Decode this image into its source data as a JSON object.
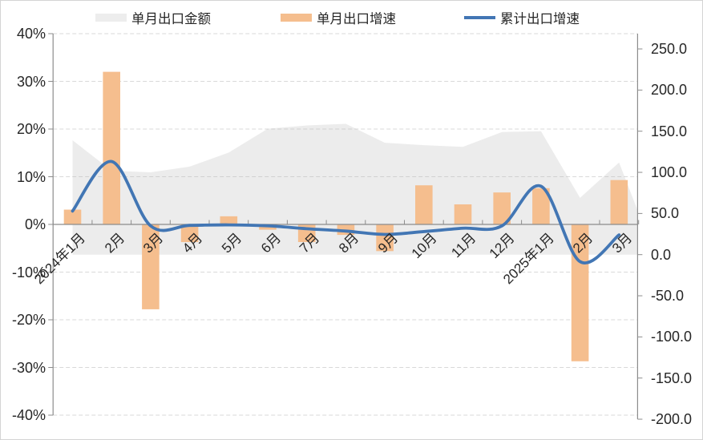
{
  "colors": {
    "bar": "#F5BE8E",
    "line": "#4276B4",
    "area_fill": "rgba(183,183,183,0.27)",
    "area_swatch": "#EDEDED",
    "grid": "#D9D9D9",
    "axis": "#8C8C8C",
    "text": "#262626"
  },
  "legend": {
    "items": [
      {
        "label": "单月出口金额",
        "type": "area"
      },
      {
        "label": "单月出口增速",
        "type": "bar"
      },
      {
        "label": "累计出口增速",
        "type": "line"
      }
    ]
  },
  "chart_data": {
    "type": "combo",
    "title": "",
    "legend_position": "top",
    "grid": "horizontal-dashed",
    "categories": [
      "2024年1月",
      "2月",
      "3月",
      "4月",
      "5月",
      "6月",
      "7月",
      "8月",
      "9月",
      "10月",
      "11月",
      "12月",
      "2025年1月",
      "2月",
      "3月"
    ],
    "series": [
      {
        "name": "单月出口金额",
        "type": "area",
        "axis": "right",
        "values": [
          139,
          102,
          100,
          107,
          124,
          153,
          157,
          159,
          136,
          133,
          131,
          149,
          150,
          69,
          112
        ]
      },
      {
        "name": "单月出口增速",
        "type": "bar",
        "axis": "left",
        "values": [
          3.1,
          32.0,
          -17.8,
          -3.7,
          1.7,
          -1.1,
          -3.7,
          -2.2,
          -5.6,
          8.2,
          4.2,
          6.7,
          7.6,
          -28.7,
          9.3
        ]
      },
      {
        "name": "累计出口增速",
        "type": "line",
        "axis": "left",
        "smooth": true,
        "values": [
          2.8,
          13.2,
          -0.3,
          -0.2,
          -0.1,
          -0.3,
          -0.9,
          -1.4,
          -2.1,
          -1.5,
          -0.8,
          -0.3,
          8.0,
          -7.8,
          -2.2
        ]
      }
    ],
    "left_axis": {
      "format": "percent",
      "min": -40,
      "max": 40,
      "labels": [
        "40%",
        "30%",
        "20%",
        "10%",
        "0%",
        "-10%",
        "-20%",
        "-30%",
        "-40%"
      ],
      "values": [
        40,
        30,
        20,
        10,
        0,
        -10,
        -20,
        -30,
        -40
      ]
    },
    "right_axis": {
      "format": "number",
      "min": -200,
      "max": 250,
      "labels": [
        "250.0",
        "200.0",
        "150.0",
        "100.0",
        "50.0",
        "0.0",
        "-50.0",
        "-100.0",
        "-150.0",
        "-200.0"
      ],
      "values": [
        250,
        200,
        150,
        100,
        50,
        0,
        -50,
        -100,
        -150,
        -200
      ]
    }
  }
}
